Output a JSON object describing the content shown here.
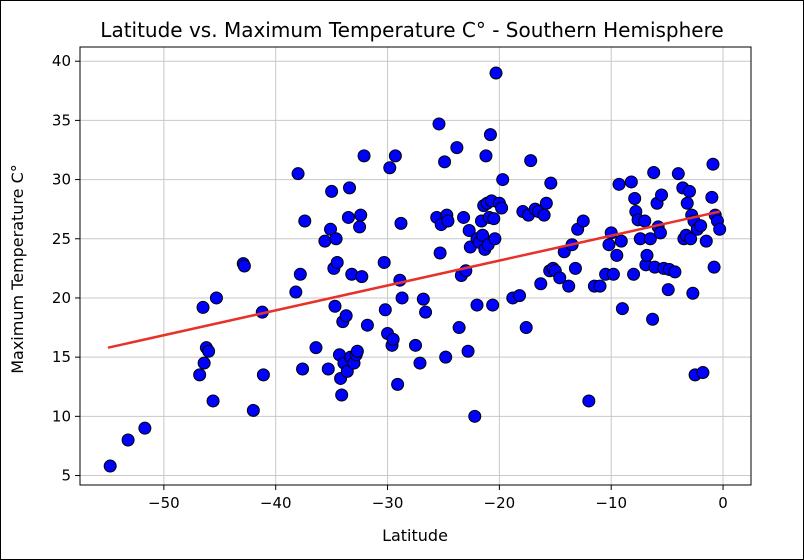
{
  "chart_data": {
    "type": "scatter",
    "title": "Latitude vs. Maximum Temperature C° - Southern Hemisphere",
    "xlabel": "Latitude",
    "ylabel": "Maximum Temperature C°",
    "xlim": [
      -57.5,
      2.5
    ],
    "ylim": [
      4.2,
      41.2
    ],
    "xticks": [
      -50,
      -40,
      -30,
      -20,
      -10,
      0
    ],
    "xtick_labels": [
      "−50",
      "−40",
      "−30",
      "−20",
      "−10",
      "0"
    ],
    "yticks": [
      5,
      10,
      15,
      20,
      25,
      30,
      35,
      40
    ],
    "ytick_labels": [
      "5",
      "10",
      "15",
      "20",
      "25",
      "30",
      "35",
      "40"
    ],
    "grid": true,
    "colors": {
      "marker_fill": "#0000ff",
      "marker_edge": "#000000",
      "regression": "#e8312a",
      "grid": "#c8c8c8"
    },
    "series": [
      {
        "kind": "scatter",
        "points": [
          [
            -54.8,
            5.8
          ],
          [
            -53.2,
            8
          ],
          [
            -51.7,
            9
          ],
          [
            -46.8,
            13.5
          ],
          [
            -46.5,
            19.2
          ],
          [
            -46.4,
            14.5
          ],
          [
            -46.2,
            15.8
          ],
          [
            -46,
            15.5
          ],
          [
            -45.6,
            11.3
          ],
          [
            -45.3,
            20
          ],
          [
            -42.9,
            22.9
          ],
          [
            -42.8,
            22.7
          ],
          [
            -42,
            10.5
          ],
          [
            -41.2,
            18.8
          ],
          [
            -41.1,
            13.5
          ],
          [
            -38.2,
            20.5
          ],
          [
            -38,
            30.5
          ],
          [
            -37.8,
            22
          ],
          [
            -37.6,
            14
          ],
          [
            -37.4,
            26.5
          ],
          [
            -36.4,
            15.8
          ],
          [
            -35.6,
            24.8
          ],
          [
            -35.3,
            14
          ],
          [
            -35.1,
            25.8
          ],
          [
            -35,
            29
          ],
          [
            -34.8,
            22.5
          ],
          [
            -34.7,
            19.3
          ],
          [
            -34.6,
            25
          ],
          [
            -34.5,
            23
          ],
          [
            -34.3,
            15.2
          ],
          [
            -34.2,
            13.2
          ],
          [
            -34.1,
            11.8
          ],
          [
            -34,
            18
          ],
          [
            -33.9,
            14.5
          ],
          [
            -33.7,
            18.5
          ],
          [
            -33.6,
            13.8
          ],
          [
            -33.5,
            26.8
          ],
          [
            -33.4,
            29.3
          ],
          [
            -33.3,
            15
          ],
          [
            -33.2,
            22
          ],
          [
            -33,
            14.5
          ],
          [
            -32.8,
            15.2
          ],
          [
            -32.7,
            15.5
          ],
          [
            -32.5,
            26
          ],
          [
            -32.4,
            27
          ],
          [
            -32.3,
            21.8
          ],
          [
            -32.1,
            32
          ],
          [
            -31.8,
            17.7
          ],
          [
            -30.3,
            23
          ],
          [
            -30.2,
            19
          ],
          [
            -30,
            17
          ],
          [
            -29.8,
            31
          ],
          [
            -29.6,
            16
          ],
          [
            -29.5,
            16.5
          ],
          [
            -29.3,
            32
          ],
          [
            -29.1,
            12.7
          ],
          [
            -28.9,
            21.5
          ],
          [
            -28.8,
            26.3
          ],
          [
            -28.7,
            20
          ],
          [
            -27.5,
            16
          ],
          [
            -27.1,
            14.5
          ],
          [
            -26.8,
            19.9
          ],
          [
            -26.6,
            18.8
          ],
          [
            -25.6,
            26.8
          ],
          [
            -25.4,
            34.7
          ],
          [
            -25.3,
            23.8
          ],
          [
            -25.2,
            26.2
          ],
          [
            -24.9,
            31.5
          ],
          [
            -24.8,
            15
          ],
          [
            -24.7,
            27
          ],
          [
            -24.6,
            26.5
          ],
          [
            -23.8,
            32.7
          ],
          [
            -23.6,
            17.5
          ],
          [
            -23.4,
            21.9
          ],
          [
            -23.2,
            26.8
          ],
          [
            -23,
            22.3
          ],
          [
            -22.8,
            15.5
          ],
          [
            -22.7,
            25.7
          ],
          [
            -22.6,
            24.3
          ],
          [
            -22.2,
            10
          ],
          [
            -22,
            19.4
          ],
          [
            -22,
            25
          ],
          [
            -21.8,
            24.7
          ],
          [
            -21.6,
            26.5
          ],
          [
            -21.5,
            25.3
          ],
          [
            -21.4,
            27.8
          ],
          [
            -21.3,
            24.1
          ],
          [
            -21.2,
            32
          ],
          [
            -21.1,
            28
          ],
          [
            -21,
            24.5
          ],
          [
            -20.9,
            26.8
          ],
          [
            -20.8,
            33.8
          ],
          [
            -20.7,
            28.2
          ],
          [
            -20.6,
            19.4
          ],
          [
            -20.5,
            26.7
          ],
          [
            -20.4,
            25
          ],
          [
            -20.3,
            39
          ],
          [
            -20,
            28
          ],
          [
            -19.8,
            27.6
          ],
          [
            -19.7,
            30
          ],
          [
            -18.8,
            20
          ],
          [
            -18.2,
            20.2
          ],
          [
            -17.9,
            27.3
          ],
          [
            -17.6,
            17.5
          ],
          [
            -17.4,
            27
          ],
          [
            -17.2,
            31.6
          ],
          [
            -16.8,
            27.5
          ],
          [
            -16.5,
            27.3
          ],
          [
            -16.3,
            21.2
          ],
          [
            -16,
            27
          ],
          [
            -15.8,
            28
          ],
          [
            -15.5,
            22.3
          ],
          [
            -15.4,
            29.7
          ],
          [
            -15.2,
            22.5
          ],
          [
            -15,
            22.3
          ],
          [
            -14.6,
            21.7
          ],
          [
            -14.2,
            23.9
          ],
          [
            -13.8,
            21
          ],
          [
            -13.5,
            24.5
          ],
          [
            -13.2,
            22.5
          ],
          [
            -13,
            25.8
          ],
          [
            -12.5,
            26.5
          ],
          [
            -12,
            11.3
          ],
          [
            -11.5,
            21
          ],
          [
            -11,
            21
          ],
          [
            -10.5,
            22
          ],
          [
            -10.2,
            24.5
          ],
          [
            -10,
            25.5
          ],
          [
            -9.8,
            22
          ],
          [
            -9.5,
            23.6
          ],
          [
            -9.3,
            29.6
          ],
          [
            -9.1,
            24.8
          ],
          [
            -9,
            19.1
          ],
          [
            -8.2,
            29.8
          ],
          [
            -8,
            22
          ],
          [
            -7.9,
            28.4
          ],
          [
            -7.8,
            27.3
          ],
          [
            -7.6,
            26.6
          ],
          [
            -7.4,
            25
          ],
          [
            -7,
            26.5
          ],
          [
            -6.9,
            22.8
          ],
          [
            -6.8,
            23.6
          ],
          [
            -6.5,
            25
          ],
          [
            -6.3,
            18.2
          ],
          [
            -6.2,
            30.6
          ],
          [
            -6.1,
            22.6
          ],
          [
            -5.9,
            28
          ],
          [
            -5.8,
            26
          ],
          [
            -5.6,
            25.5
          ],
          [
            -5.5,
            28.7
          ],
          [
            -5.3,
            22.5
          ],
          [
            -4.9,
            20.7
          ],
          [
            -4.8,
            22.4
          ],
          [
            -4.3,
            22.2
          ],
          [
            -4,
            30.5
          ],
          [
            -3.6,
            29.3
          ],
          [
            -3.5,
            25
          ],
          [
            -3.3,
            25.3
          ],
          [
            -3.2,
            28
          ],
          [
            -3,
            29
          ],
          [
            -2.9,
            25
          ],
          [
            -2.8,
            27
          ],
          [
            -2.7,
            20.4
          ],
          [
            -2.6,
            26.5
          ],
          [
            -2.5,
            13.5
          ],
          [
            -2.3,
            25.8
          ],
          [
            -2,
            26.1
          ],
          [
            -1.8,
            13.7
          ],
          [
            -1.5,
            24.8
          ],
          [
            -1,
            28.5
          ],
          [
            -0.9,
            31.3
          ],
          [
            -0.8,
            22.6
          ],
          [
            -0.7,
            27
          ],
          [
            -0.5,
            26.5
          ],
          [
            -0.3,
            25.8
          ]
        ]
      },
      {
        "kind": "line",
        "points": [
          [
            -55,
            15.8
          ],
          [
            -0.3,
            27.3
          ]
        ]
      }
    ]
  }
}
